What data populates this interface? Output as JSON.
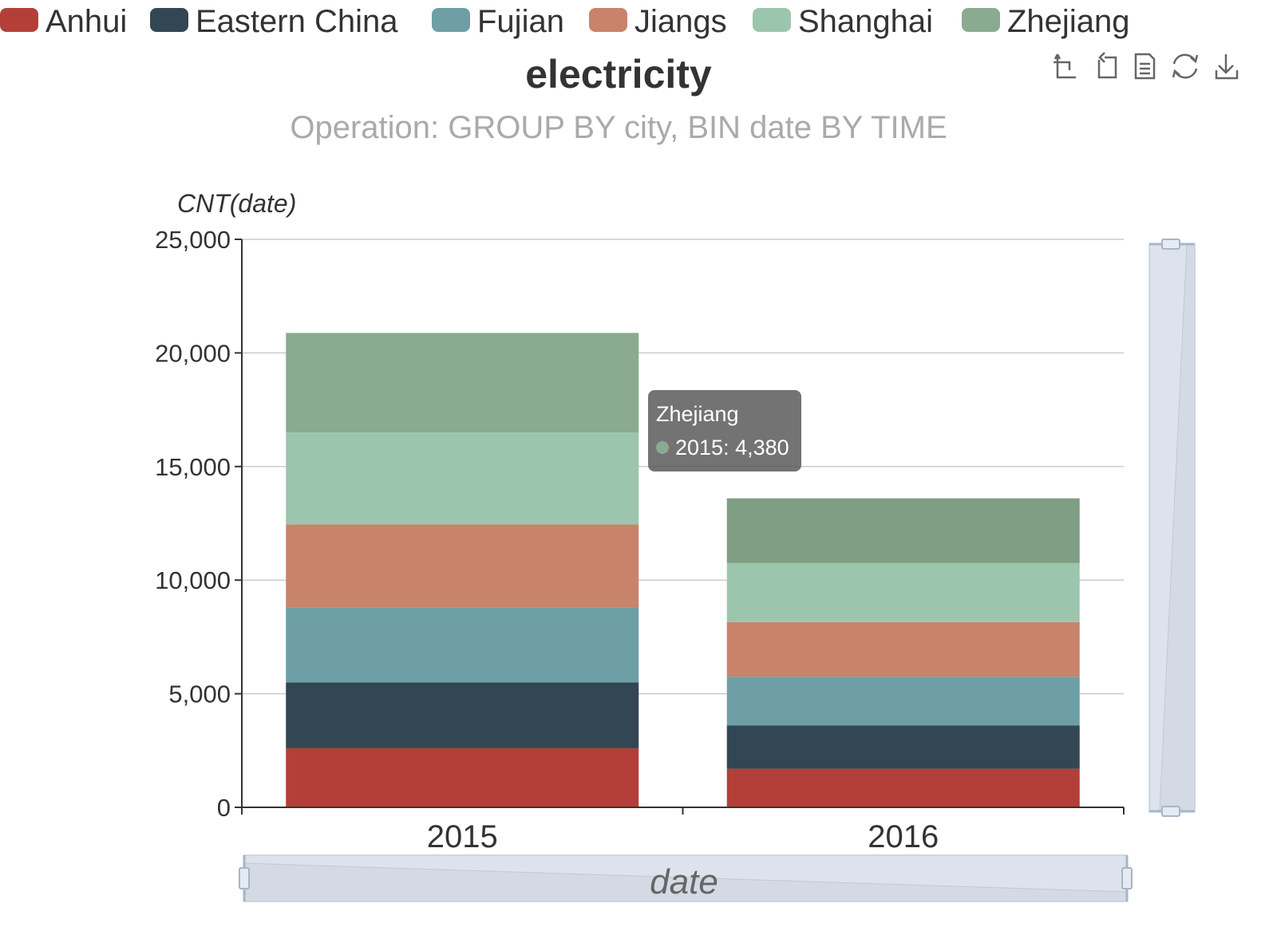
{
  "chart_data": {
    "type": "bar",
    "stacked": true,
    "title": "electricity",
    "subtitle": "Operation: GROUP BY city, BIN date BY TIME",
    "xlabel": "date",
    "ylabel": "CNT(date)",
    "categories": [
      "2015",
      "2016"
    ],
    "ylim": [
      0,
      25000
    ],
    "yticks": [
      0,
      5000,
      10000,
      15000,
      20000,
      25000
    ],
    "ytick_labels": [
      "0",
      "5,000",
      "10,000",
      "15,000",
      "20,000",
      "25,000"
    ],
    "grid": true,
    "legend_position": "top",
    "series": [
      {
        "name": "Anhui",
        "color": "#b33f38",
        "values": [
          2600,
          1700
        ]
      },
      {
        "name": "Eastern China",
        "color": "#334654",
        "values": [
          2900,
          1900
        ]
      },
      {
        "name": "Fujian",
        "color": "#6e9fa6",
        "values": [
          3300,
          2150
        ]
      },
      {
        "name": "Jiangs",
        "color": "#c8836a",
        "values": [
          3650,
          2400
        ]
      },
      {
        "name": "Shanghai",
        "color": "#9cc5ae",
        "values": [
          4050,
          2600
        ]
      },
      {
        "name": "Zhejiang",
        "color": "#8aab8f",
        "values": [
          4380,
          2850
        ]
      }
    ],
    "series_2016_colors": {
      "Zhejiang": "#809e83"
    }
  },
  "tooltip": {
    "title": "Zhejiang",
    "line": "2015: 4,380",
    "dot_color": "#8aab8f"
  },
  "toolbox": {
    "icons": [
      "zoom-icon",
      "zoom-reset-icon",
      "data-view-icon",
      "restore-icon",
      "save-image-icon"
    ]
  }
}
